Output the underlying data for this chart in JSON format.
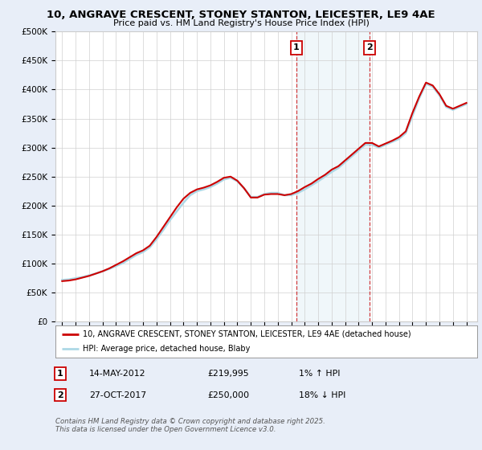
{
  "title": "10, ANGRAVE CRESCENT, STONEY STANTON, LEICESTER, LE9 4AE",
  "subtitle": "Price paid vs. HM Land Registry's House Price Index (HPI)",
  "ylim": [
    0,
    500000
  ],
  "yticks": [
    0,
    50000,
    100000,
    150000,
    200000,
    250000,
    300000,
    350000,
    400000,
    450000,
    500000
  ],
  "ytick_labels": [
    "£0",
    "£50K",
    "£100K",
    "£150K",
    "£200K",
    "£250K",
    "£300K",
    "£350K",
    "£400K",
    "£450K",
    "£500K"
  ],
  "hpi_color": "#add8e6",
  "price_color": "#cc0000",
  "sale1_x": 2012.37,
  "sale2_x": 2017.82,
  "marker1_date": "14-MAY-2012",
  "marker1_price": "£219,995",
  "marker1_hpi": "1% ↑ HPI",
  "marker2_date": "27-OCT-2017",
  "marker2_price": "£250,000",
  "marker2_hpi": "18% ↓ HPI",
  "legend_price": "10, ANGRAVE CRESCENT, STONEY STANTON, LEICESTER, LE9 4AE (detached house)",
  "legend_hpi": "HPI: Average price, detached house, Blaby",
  "footer": "Contains HM Land Registry data © Crown copyright and database right 2025.\nThis data is licensed under the Open Government Licence v3.0.",
  "bg_color": "#e8eef8",
  "hpi_x": [
    1995.0,
    1995.5,
    1996.0,
    1996.5,
    1997.0,
    1997.5,
    1998.0,
    1998.5,
    1999.0,
    1999.5,
    2000.0,
    2000.5,
    2001.0,
    2001.5,
    2002.0,
    2002.5,
    2003.0,
    2003.5,
    2004.0,
    2004.5,
    2005.0,
    2005.5,
    2006.0,
    2006.5,
    2007.0,
    2007.5,
    2008.0,
    2008.5,
    2009.0,
    2009.5,
    2010.0,
    2010.5,
    2011.0,
    2011.5,
    2012.0,
    2012.5,
    2013.0,
    2013.5,
    2014.0,
    2014.5,
    2015.0,
    2015.5,
    2016.0,
    2016.5,
    2017.0,
    2017.5,
    2018.0,
    2018.5,
    2019.0,
    2019.5,
    2020.0,
    2020.5,
    2021.0,
    2021.5,
    2022.0,
    2022.5,
    2023.0,
    2023.5,
    2024.0,
    2024.5,
    2025.0
  ],
  "hpi_y": [
    72000,
    73000,
    75000,
    77000,
    80000,
    83000,
    87000,
    91000,
    96000,
    101000,
    108000,
    115000,
    120000,
    128000,
    142000,
    158000,
    175000,
    190000,
    205000,
    218000,
    225000,
    228000,
    232000,
    238000,
    245000,
    248000,
    242000,
    230000,
    215000,
    215000,
    220000,
    222000,
    222000,
    218000,
    218000,
    222000,
    228000,
    235000,
    242000,
    250000,
    258000,
    265000,
    275000,
    285000,
    295000,
    305000,
    305000,
    300000,
    305000,
    310000,
    315000,
    325000,
    355000,
    385000,
    410000,
    405000,
    390000,
    370000,
    365000,
    370000,
    375000
  ],
  "price_x": [
    1995.0,
    1995.5,
    1996.0,
    1996.5,
    1997.0,
    1997.5,
    1998.0,
    1998.5,
    1999.0,
    1999.5,
    2000.0,
    2000.5,
    2001.0,
    2001.5,
    2002.0,
    2002.5,
    2003.0,
    2003.5,
    2004.0,
    2004.5,
    2005.0,
    2005.5,
    2006.0,
    2006.5,
    2007.0,
    2007.5,
    2008.0,
    2008.5,
    2009.0,
    2009.5,
    2010.0,
    2010.5,
    2011.0,
    2011.5,
    2012.0,
    2012.5,
    2013.0,
    2013.5,
    2014.0,
    2014.5,
    2015.0,
    2015.5,
    2016.0,
    2016.5,
    2017.0,
    2017.5,
    2018.0,
    2018.5,
    2019.0,
    2019.5,
    2020.0,
    2020.5,
    2021.0,
    2021.5,
    2022.0,
    2022.5,
    2023.0,
    2023.5,
    2024.0,
    2024.5,
    2025.0
  ],
  "price_y": [
    70000,
    71000,
    73000,
    76000,
    79000,
    83000,
    87000,
    92000,
    98000,
    104000,
    111000,
    118000,
    123000,
    131000,
    146000,
    163000,
    180000,
    197000,
    212000,
    222000,
    228000,
    231000,
    235000,
    241000,
    248000,
    250000,
    243000,
    230000,
    214000,
    214000,
    219000,
    220000,
    220000,
    218000,
    220000,
    225000,
    232000,
    238000,
    246000,
    253000,
    262000,
    268000,
    278000,
    288000,
    298000,
    308000,
    308000,
    302000,
    307000,
    312000,
    318000,
    328000,
    360000,
    388000,
    412000,
    407000,
    392000,
    372000,
    367000,
    372000,
    377000
  ]
}
